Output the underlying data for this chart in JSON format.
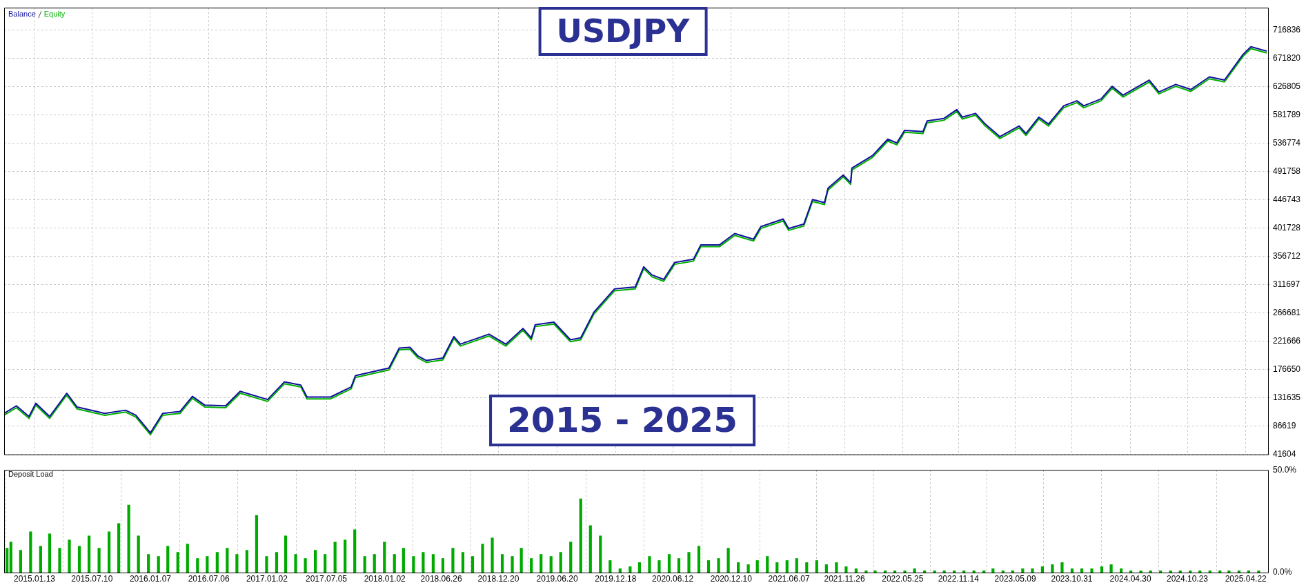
{
  "chart_data": [
    {
      "type": "line",
      "title": "USDJPY",
      "subtitle": "2015 - 2025",
      "legend": "top left",
      "marker": "none",
      "grid": true,
      "tick_labels": "y",
      "x": [
        "2014-10-11",
        "2014-11-18",
        "2014-12-27",
        "2015-01-17",
        "2015-03-01",
        "2015-04-23",
        "2015-05-25",
        "2015-08-19",
        "2015-10-22",
        "2015-11-23",
        "2016-01-07",
        "2016-02-14",
        "2016-04-08",
        "2016-05-16",
        "2016-06-24",
        "2016-08-27",
        "2016-10-11",
        "2017-01-04",
        "2017-02-25",
        "2017-04-17",
        "2017-05-06",
        "2017-07-18",
        "2017-09-20",
        "2017-10-03",
        "2018-01-15",
        "2018-02-16",
        "2018-03-21",
        "2018-04-15",
        "2018-05-11",
        "2018-07-01",
        "2018-08-04",
        "2018-08-24",
        "2018-11-21",
        "2019-01-12",
        "2019-03-06",
        "2019-04-01",
        "2019-04-13",
        "2019-06-10",
        "2019-07-31",
        "2019-09-01",
        "2019-10-12",
        "2019-12-15",
        "2020-02-17",
        "2020-03-14",
        "2020-04-09",
        "2020-05-15",
        "2020-06-18",
        "2020-08-15",
        "2020-09-07",
        "2020-11-04",
        "2020-12-21",
        "2021-02-17",
        "2021-03-12",
        "2021-05-20",
        "2021-06-06",
        "2021-07-23",
        "2021-08-19",
        "2021-09-25",
        "2021-10-06",
        "2021-11-22",
        "2021-12-15",
        "2021-12-19",
        "2022-02-21",
        "2022-04-09",
        "2022-05-07",
        "2022-05-31",
        "2022-07-27",
        "2022-08-09",
        "2022-09-30",
        "2022-11-09",
        "2022-11-26",
        "2023-01-06",
        "2023-02-05",
        "2023-02-28",
        "2023-03-22",
        "2023-05-21",
        "2023-06-11",
        "2023-07-21",
        "2023-08-20",
        "2023-10-06",
        "2023-11-16",
        "2023-12-07",
        "2024-01-30",
        "2024-03-04",
        "2024-04-07",
        "2024-06-27",
        "2024-07-27",
        "2024-09-17",
        "2024-11-03",
        "2024-12-30",
        "2025-02-15",
        "2025-03-11",
        "2025-04-14",
        "2025-05-08",
        "2025-06-26"
      ],
      "series": [
        {
          "name": "Equity",
          "color": "#00b000",
          "values": [
            104000,
            116000,
            99000,
            120000,
            99000,
            136000,
            114000,
            104000,
            109000,
            101000,
            73000,
            104000,
            107000,
            131000,
            117000,
            116000,
            139000,
            126000,
            154000,
            149000,
            130000,
            130000,
            146000,
            164000,
            176000,
            208000,
            209000,
            195000,
            188000,
            192000,
            226000,
            214000,
            230000,
            214000,
            239000,
            224000,
            245000,
            249000,
            221000,
            224000,
            265000,
            302000,
            305000,
            337000,
            324000,
            317000,
            344000,
            349000,
            372000,
            372000,
            390000,
            381000,
            401000,
            413000,
            398000,
            405000,
            444000,
            439000,
            462000,
            483000,
            471000,
            494000,
            514000,
            540000,
            534000,
            554000,
            552000,
            569000,
            573000,
            587000,
            575000,
            581000,
            564000,
            554000,
            544000,
            561000,
            549000,
            575000,
            564000,
            593000,
            601000,
            593000,
            604000,
            624000,
            610000,
            634000,
            615000,
            627000,
            619000,
            639000,
            634000,
            651000,
            675000,
            687000,
            680000
          ]
        },
        {
          "name": "Balance",
          "color": "#10109c",
          "values": [
            107000,
            119000,
            102000,
            123000,
            102000,
            139000,
            117000,
            107000,
            112000,
            104000,
            76000,
            107000,
            110000,
            134000,
            120000,
            119000,
            142000,
            129000,
            157000,
            152000,
            133000,
            133000,
            149000,
            167000,
            179000,
            211000,
            212000,
            198000,
            191000,
            195000,
            229000,
            217000,
            233000,
            217000,
            242000,
            227000,
            248000,
            252000,
            224000,
            227000,
            268000,
            305000,
            308000,
            340000,
            327000,
            320000,
            347000,
            352000,
            375000,
            375000,
            393000,
            384000,
            404000,
            416000,
            401000,
            408000,
            447000,
            442000,
            465000,
            486000,
            474000,
            497000,
            517000,
            543000,
            537000,
            557000,
            555000,
            572000,
            576000,
            590000,
            578000,
            584000,
            567000,
            557000,
            547000,
            564000,
            552000,
            578000,
            567000,
            596000,
            604000,
            596000,
            607000,
            627000,
            613000,
            637000,
            618000,
            630000,
            622000,
            642000,
            637000,
            654000,
            678000,
            690000,
            683000
          ]
        }
      ],
      "xlim": [
        "2014-10-11",
        "2025-06-30"
      ],
      "xticks": [
        {
          "value": "2015-01-13",
          "label": null
        },
        {
          "value": "2015-07-10",
          "label": null
        },
        {
          "value": "2016-01-07",
          "label": null
        },
        {
          "value": "2016-07-06",
          "label": null
        },
        {
          "value": "2017-01-02",
          "label": null
        },
        {
          "value": "2017-07-05",
          "label": null
        },
        {
          "value": "2018-01-02",
          "label": null
        },
        {
          "value": "2018-06-26",
          "label": null
        },
        {
          "value": "2018-12-20",
          "label": null
        },
        {
          "value": "2019-06-20",
          "label": null
        },
        {
          "value": "2019-12-18",
          "label": null
        },
        {
          "value": "2020-06-12",
          "label": null
        },
        {
          "value": "2020-12-10",
          "label": null
        },
        {
          "value": "2021-06-07",
          "label": null
        },
        {
          "value": "2021-11-26",
          "label": null
        },
        {
          "value": "2022-05-25",
          "label": null
        },
        {
          "value": "2022-11-14",
          "label": null
        },
        {
          "value": "2023-05-09",
          "label": null
        },
        {
          "value": "2023-10-31",
          "label": null
        },
        {
          "value": "2024-04-30",
          "label": null
        },
        {
          "value": "2024-10-23",
          "label": null
        },
        {
          "value": "2025-04-22",
          "label": null
        }
      ],
      "ylim": [
        41604,
        752000
      ],
      "yticks": [
        41604,
        86619,
        131635,
        176650,
        221666,
        266681,
        311697,
        356712,
        401728,
        446743,
        491758,
        536774,
        581789,
        626805,
        671820,
        716836
      ]
    },
    {
      "type": "bar",
      "title": "Deposit Load",
      "color": "#00aa00",
      "grid": "x",
      "x": [
        "2014-10-20",
        "2014-11",
        "2014-12",
        "2015-01",
        "2015-02",
        "2015-03",
        "2015-04",
        "2015-05",
        "2015-06",
        "2015-07",
        "2015-08",
        "2015-09",
        "2015-10",
        "2015-11",
        "2015-12",
        "2016-01",
        "2016-02",
        "2016-03",
        "2016-04",
        "2016-05",
        "2016-06",
        "2016-07",
        "2016-08",
        "2016-09",
        "2016-10",
        "2016-11",
        "2016-12",
        "2017-01",
        "2017-02",
        "2017-03",
        "2017-04",
        "2017-05",
        "2017-06",
        "2017-07",
        "2017-08",
        "2017-09",
        "2017-10",
        "2017-11",
        "2017-12",
        "2018-01",
        "2018-02",
        "2018-03",
        "2018-04",
        "2018-05",
        "2018-06",
        "2018-07",
        "2018-08",
        "2018-09",
        "2018-10",
        "2018-11",
        "2018-12",
        "2019-01",
        "2019-02",
        "2019-03",
        "2019-04",
        "2019-05",
        "2019-06",
        "2019-07",
        "2019-08",
        "2019-09",
        "2019-10",
        "2019-11",
        "2019-12",
        "2020-01",
        "2020-02",
        "2020-03",
        "2020-04",
        "2020-05",
        "2020-06",
        "2020-07",
        "2020-08",
        "2020-09",
        "2020-10",
        "2020-11",
        "2020-12",
        "2021-01",
        "2021-02",
        "2021-03",
        "2021-04",
        "2021-05",
        "2021-06",
        "2021-07",
        "2021-08",
        "2021-09",
        "2021-10",
        "2021-11",
        "2021-12",
        "2022-01",
        "2022-02",
        "2022-03",
        "2022-04",
        "2022-05",
        "2022-06",
        "2022-07",
        "2022-08",
        "2022-09",
        "2022-10",
        "2022-11",
        "2022-12",
        "2023-01",
        "2023-02",
        "2023-03",
        "2023-04",
        "2023-05",
        "2023-06",
        "2023-07",
        "2023-08",
        "2023-09",
        "2023-10",
        "2023-11",
        "2023-12",
        "2024-01",
        "2024-02",
        "2024-03",
        "2024-04",
        "2024-05",
        "2024-06",
        "2024-07",
        "2024-08",
        "2024-09",
        "2024-10",
        "2024-11",
        "2024-12",
        "2025-01",
        "2025-02",
        "2025-03",
        "2025-04",
        "2025-05",
        "2025-06"
      ],
      "values": [
        12,
        15,
        11,
        20,
        13,
        19,
        12,
        16,
        13,
        18,
        12,
        20,
        24,
        33,
        18,
        9,
        8,
        13,
        10,
        14,
        7,
        8,
        10,
        12,
        9,
        11,
        28,
        8,
        10,
        18,
        9,
        7,
        11,
        9,
        15,
        16,
        21,
        8,
        9,
        15,
        9,
        12,
        8,
        10,
        9,
        7,
        12,
        10,
        8,
        14,
        17,
        9,
        8,
        12,
        7,
        9,
        8,
        10,
        15,
        36,
        23,
        18,
        6,
        2,
        3,
        5,
        8,
        6,
        9,
        7,
        10,
        13,
        6,
        7,
        12,
        5,
        4,
        6,
        8,
        5,
        6,
        7,
        5,
        6,
        4,
        5,
        3,
        2,
        1,
        1,
        1,
        1,
        1,
        2,
        1,
        1,
        1,
        1,
        1,
        1,
        1,
        2,
        1,
        1,
        2,
        2,
        3,
        4,
        5,
        2,
        2,
        2,
        3,
        4,
        2,
        1,
        1,
        1,
        1,
        1,
        1,
        1,
        1,
        1,
        1,
        1,
        1,
        1,
        1
      ],
      "xlim": [
        "2014-10-11",
        "2025-06-30"
      ],
      "xticks": [
        {
          "value": "2015-01-13",
          "label": "2015.01.13"
        },
        {
          "value": "2015-07-10",
          "label": "2015.07.10"
        },
        {
          "value": "2016-01-07",
          "label": "2016.01.07"
        },
        {
          "value": "2016-07-06",
          "label": "2016.07.06"
        },
        {
          "value": "2017-01-02",
          "label": "2017.01.02"
        },
        {
          "value": "2017-07-05",
          "label": "2017.07.05"
        },
        {
          "value": "2018-01-02",
          "label": "2018.01.02"
        },
        {
          "value": "2018-06-26",
          "label": "2018.06.26"
        },
        {
          "value": "2018-12-20",
          "label": "2018.12.20"
        },
        {
          "value": "2019-06-20",
          "label": "2019.06.20"
        },
        {
          "value": "2019-12-18",
          "label": "2019.12.18"
        },
        {
          "value": "2020-06-12",
          "label": "2020.06.12"
        },
        {
          "value": "2020-12-10",
          "label": "2020.12.10"
        },
        {
          "value": "2021-06-07",
          "label": "2021.06.07"
        },
        {
          "value": "2021-11-26",
          "label": "2021.11.26"
        },
        {
          "value": "2022-05-25",
          "label": "2022.05.25"
        },
        {
          "value": "2022-11-14",
          "label": "2022.11.14"
        },
        {
          "value": "2023-05-09",
          "label": "2023.05.09"
        },
        {
          "value": "2023-10-31",
          "label": "2023.10.31"
        },
        {
          "value": "2024-04-30",
          "label": "2024.04.30"
        },
        {
          "value": "2024-10-23",
          "label": "2024.10.23"
        },
        {
          "value": "2025-04-22",
          "label": "2025.04.22"
        }
      ],
      "ylim": [
        0,
        50
      ],
      "yticks": [
        {
          "value": 0,
          "label": "0.0%"
        },
        {
          "value": 50,
          "label": "50.0%"
        }
      ]
    }
  ]
}
